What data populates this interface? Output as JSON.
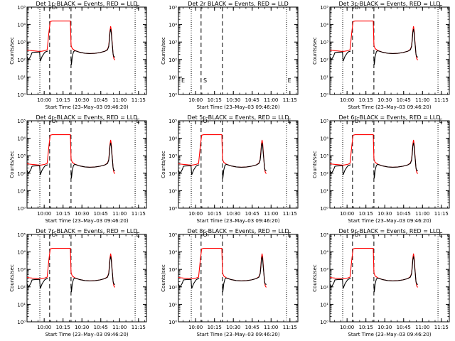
{
  "chart_data": {
    "type": "line",
    "layout": "3x3 grid of panels",
    "colors": {
      "events": "#000000",
      "lld": "#ff0000",
      "axes": "#000000",
      "background": "#ffffff"
    },
    "common": {
      "y_axis": {
        "scale": "log",
        "ylim": [
          1,
          100000
        ],
        "ticks": [
          1,
          10,
          100,
          1000,
          10000,
          100000
        ],
        "tick_labels": [
          "10⁰",
          "10¹",
          "10²",
          "10³",
          "10⁴",
          "10⁵"
        ],
        "label": "Counts/sec"
      },
      "x_axis": {
        "unit": "minutes after 09:46:20",
        "xlim": [
          0,
          95
        ],
        "ticks": [
          13.67,
          28.67,
          43.67,
          58.67,
          73.67,
          88.67
        ],
        "tick_labels": [
          "10:00",
          "10:15",
          "10:30",
          "10:45",
          "11:00",
          "11:15"
        ],
        "label": "Start Time (23–May–03 09:46:20)"
      },
      "dotted_vlines": [
        10.2,
        86.0
      ],
      "dashed_vlines": [
        18.0,
        35.0
      ],
      "grid": false,
      "markers": [
        {
          "symbol": "O",
          "x": 21.2
        },
        {
          "symbol": "S",
          "x": 21.2
        },
        {
          "symbol": "E",
          "x": 88.3
        }
      ]
    },
    "panels": [
      {
        "title": "Det 1r–BLACK = Events, RED = LLD",
        "has_data": true,
        "show_ylabel": true
      },
      {
        "title": "Det 2r BLACK = Events, RED = LLD",
        "has_data": false,
        "show_ylabel": true
      },
      {
        "title": "Det 3r–BLACK = Events, RED = LLD",
        "has_data": true,
        "show_ylabel": true
      },
      {
        "title": "Det 4r–BLACK = Events, RED = LLD",
        "has_data": true,
        "show_ylabel": true
      },
      {
        "title": "Det 5r–BLACK = Events, RED = LLD",
        "has_data": true,
        "show_ylabel": true
      },
      {
        "title": "Det 6r–BLACK = Events, RED = LLD",
        "has_data": true,
        "show_ylabel": true
      },
      {
        "title": "Det 7r–BLACK = Events, RED = LLD",
        "has_data": true,
        "show_ylabel": true
      },
      {
        "title": "Det 8r–BLACK = Events, RED = LLD",
        "has_data": true,
        "show_ylabel": true
      },
      {
        "title": "Det 9r–BLACK = Events, RED = LLD",
        "has_data": true,
        "show_ylabel": true
      }
    ],
    "series": [
      {
        "color": "red",
        "x": [
          0,
          2,
          4,
          6,
          8,
          10,
          10.5,
          12,
          14,
          16,
          16.5,
          17.5,
          18.5,
          20,
          22,
          26,
          30,
          33,
          34.5,
          35,
          35.2,
          36,
          38,
          42,
          46,
          50,
          54,
          58,
          62,
          64,
          65,
          65.5,
          66,
          66.5,
          67,
          67.5,
          68,
          68.5,
          69,
          69.5,
          70
        ],
        "y": [
          350,
          330,
          320,
          310,
          300,
          290,
          290,
          300,
          320,
          360,
          800,
          4000,
          15000,
          16000,
          16000,
          16000,
          16000,
          16000,
          16000,
          800,
          600,
          420,
          330,
          260,
          230,
          220,
          225,
          250,
          300,
          380,
          600,
          1500,
          4500,
          8000,
          5000,
          1500,
          500,
          200,
          120,
          100,
          95
        ]
      },
      {
        "color": "black",
        "x": [
          0,
          1,
          2,
          3,
          4,
          6,
          8,
          10,
          10.5,
          12,
          14,
          15,
          16,
          16.5,
          17,
          17.5,
          18,
          18.5,
          19,
          20,
          22,
          25,
          30,
          33,
          34.5,
          35,
          35.3,
          35.6,
          36,
          37,
          38,
          42,
          46,
          50,
          54,
          58,
          62,
          64,
          65,
          65.5,
          66,
          66.5,
          67,
          67.5,
          68,
          68.5,
          69,
          69.5,
          70
        ],
        "y": [
          150,
          100,
          120,
          160,
          250,
          260,
          265,
          270,
          80,
          150,
          250,
          280,
          295,
          300,
          null,
          null,
          null,
          null,
          null,
          null,
          null,
          null,
          null,
          null,
          null,
          150,
          50,
          80,
          150,
          280,
          320,
          260,
          230,
          220,
          225,
          250,
          300,
          360,
          550,
          1200,
          3500,
          5500,
          3500,
          1200,
          500,
          200,
          150,
          140,
          140
        ]
      }
    ]
  }
}
